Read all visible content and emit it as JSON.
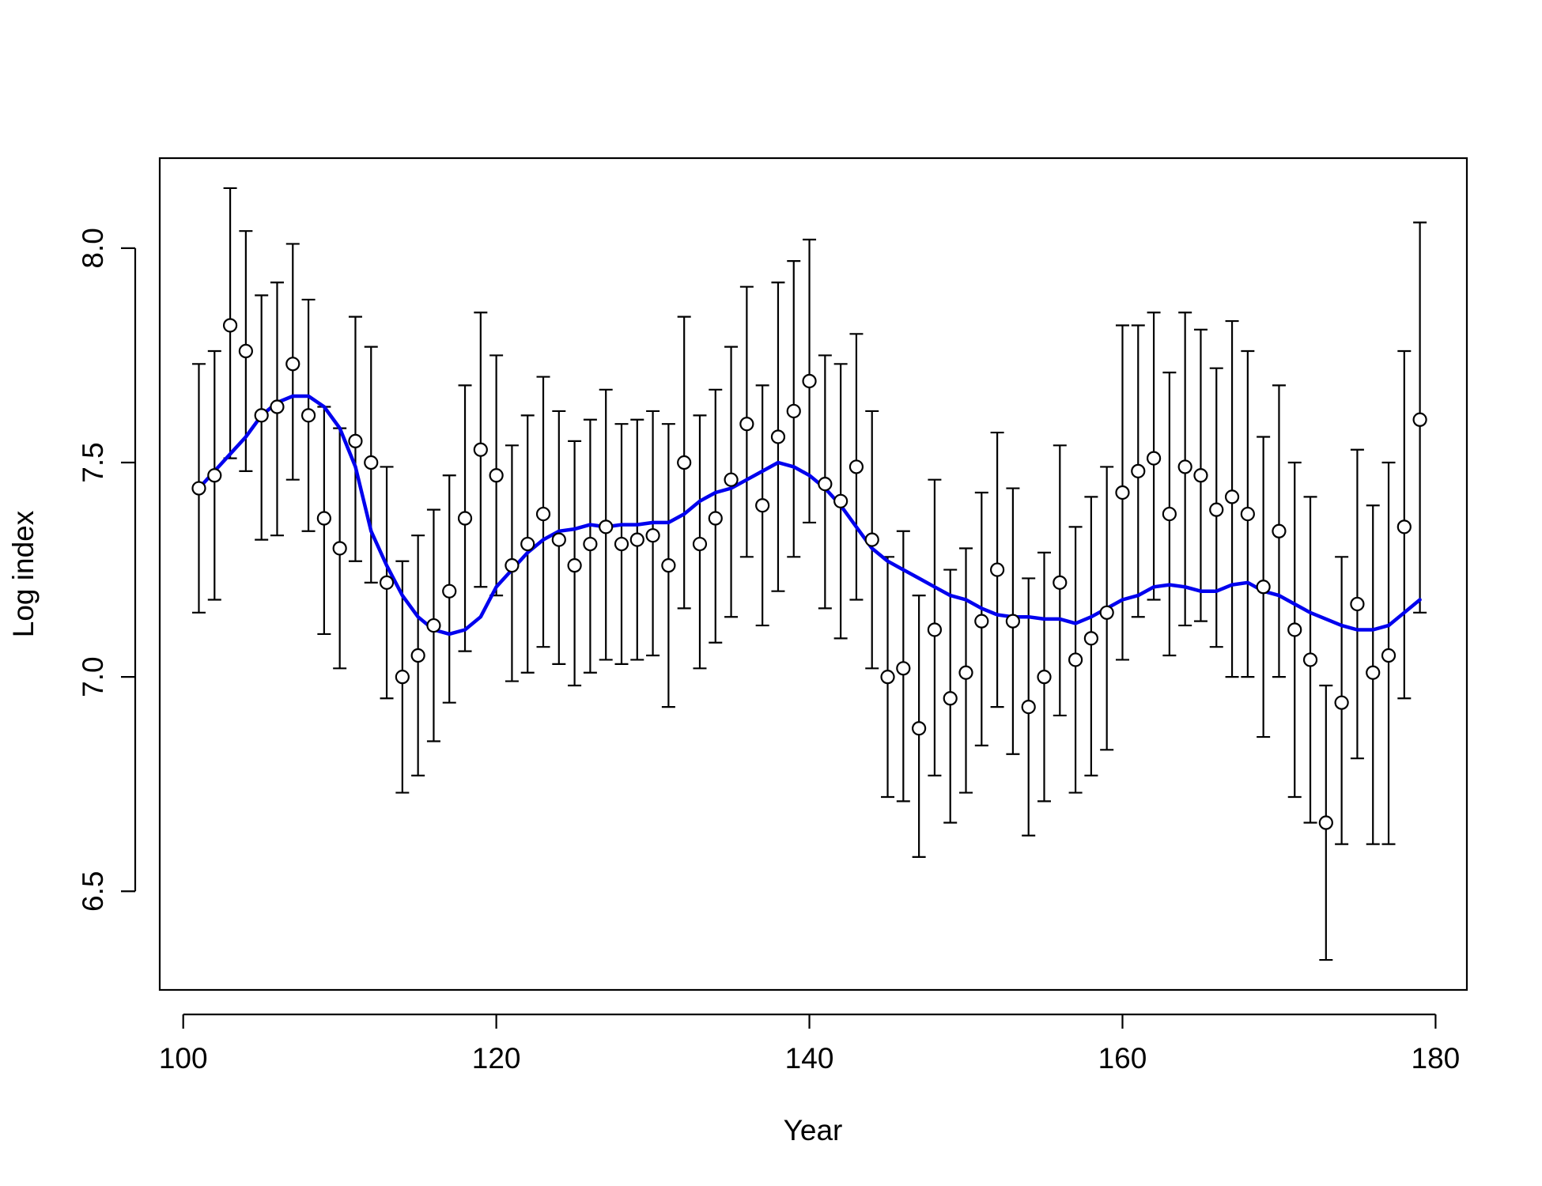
{
  "chart_data": {
    "type": "scatter",
    "title": "",
    "xlabel": "Year",
    "ylabel": "Log index",
    "xlim": [
      98.5,
      182
    ],
    "ylim": [
      6.27,
      8.21
    ],
    "x_ticks": [
      100,
      120,
      140,
      160,
      180
    ],
    "x_tick_labels": [
      "100",
      "120",
      "140",
      "160",
      "180"
    ],
    "y_ticks": [
      6.5,
      7.0,
      7.5,
      8.0
    ],
    "y_tick_labels": [
      "6.5",
      "7.0",
      "7.5",
      "8.0"
    ],
    "grid": false,
    "legend": "none",
    "colors": {
      "points": "#000000",
      "error_bars": "#000000",
      "trend": "#0000ee"
    },
    "series": [
      {
        "kind": "points_with_error_bars",
        "x": [
          101,
          102,
          103,
          104,
          105,
          106,
          107,
          108,
          109,
          110,
          111,
          112,
          113,
          114,
          115,
          116,
          117,
          118,
          119,
          120,
          121,
          122,
          123,
          124,
          125,
          126,
          127,
          128,
          129,
          130,
          131,
          132,
          133,
          134,
          135,
          136,
          137,
          138,
          139,
          140,
          141,
          142,
          143,
          144,
          145,
          146,
          147,
          148,
          149,
          150,
          151,
          152,
          153,
          154,
          155,
          156,
          157,
          158,
          159,
          160,
          161,
          162,
          163,
          164,
          165,
          166,
          167,
          168,
          169,
          170,
          171,
          172,
          173,
          174,
          175,
          176,
          177,
          178,
          179
        ],
        "y": [
          7.44,
          7.47,
          7.82,
          7.76,
          7.61,
          7.63,
          7.73,
          7.61,
          7.37,
          7.3,
          7.55,
          7.5,
          7.22,
          7.0,
          7.05,
          7.12,
          7.2,
          7.37,
          7.53,
          7.47,
          7.26,
          7.31,
          7.38,
          7.32,
          7.26,
          7.31,
          7.35,
          7.31,
          7.32,
          7.33,
          7.26,
          7.5,
          7.31,
          7.37,
          7.46,
          7.59,
          7.4,
          7.56,
          7.62,
          7.69,
          7.45,
          7.41,
          7.49,
          7.32,
          7.0,
          7.02,
          6.88,
          7.11,
          6.95,
          7.01,
          7.13,
          7.25,
          7.13,
          6.93,
          7.0,
          7.22,
          7.04,
          7.09,
          7.15,
          7.43,
          7.48,
          7.51,
          7.38,
          7.49,
          7.47,
          7.39,
          7.42,
          7.38,
          7.21,
          7.34,
          7.11,
          7.04,
          6.66,
          6.94,
          7.17,
          7.01,
          7.05,
          7.35,
          7.6
        ],
        "lower": [
          7.15,
          7.18,
          7.51,
          7.48,
          7.32,
          7.33,
          7.46,
          7.34,
          7.1,
          7.02,
          7.27,
          7.22,
          6.95,
          6.73,
          6.77,
          6.85,
          6.94,
          7.06,
          7.21,
          7.19,
          6.99,
          7.01,
          7.07,
          7.03,
          6.98,
          7.01,
          7.04,
          7.03,
          7.04,
          7.05,
          6.93,
          7.16,
          7.02,
          7.08,
          7.14,
          7.28,
          7.12,
          7.2,
          7.28,
          7.36,
          7.16,
          7.09,
          7.18,
          7.02,
          6.72,
          6.71,
          6.58,
          6.77,
          6.66,
          6.73,
          6.84,
          6.93,
          6.82,
          6.63,
          6.71,
          6.91,
          6.73,
          6.77,
          6.83,
          7.04,
          7.14,
          7.18,
          7.05,
          7.12,
          7.13,
          7.07,
          7.0,
          7.0,
          6.86,
          7.0,
          6.72,
          6.66,
          6.34,
          6.61,
          6.81,
          6.61,
          6.61,
          6.95,
          7.15
        ],
        "upper": [
          7.73,
          7.76,
          8.14,
          8.04,
          7.89,
          7.92,
          8.01,
          7.88,
          7.63,
          7.58,
          7.84,
          7.77,
          7.49,
          7.27,
          7.33,
          7.39,
          7.47,
          7.68,
          7.85,
          7.75,
          7.54,
          7.61,
          7.7,
          7.62,
          7.55,
          7.6,
          7.67,
          7.59,
          7.6,
          7.62,
          7.59,
          7.84,
          7.61,
          7.67,
          7.77,
          7.91,
          7.68,
          7.92,
          7.97,
          8.02,
          7.75,
          7.73,
          7.8,
          7.62,
          7.28,
          7.34,
          7.19,
          7.46,
          7.25,
          7.3,
          7.43,
          7.57,
          7.44,
          7.23,
          7.29,
          7.54,
          7.35,
          7.42,
          7.49,
          7.82,
          7.82,
          7.85,
          7.71,
          7.85,
          7.81,
          7.72,
          7.83,
          7.76,
          7.56,
          7.68,
          7.5,
          7.42,
          6.98,
          7.28,
          7.53,
          7.4,
          7.5,
          7.76,
          8.06
        ]
      },
      {
        "kind": "trend_line",
        "x": [
          101,
          102,
          103,
          104,
          105,
          106,
          107,
          108,
          109,
          110,
          111,
          112,
          113,
          114,
          115,
          116,
          117,
          118,
          119,
          120,
          121,
          122,
          123,
          124,
          125,
          126,
          127,
          128,
          129,
          130,
          131,
          132,
          133,
          134,
          135,
          136,
          137,
          138,
          139,
          140,
          141,
          142,
          143,
          144,
          145,
          146,
          147,
          148,
          149,
          150,
          151,
          152,
          153,
          154,
          155,
          156,
          157,
          158,
          159,
          160,
          161,
          162,
          163,
          164,
          165,
          166,
          167,
          168,
          169,
          170,
          171,
          172,
          173,
          174,
          175,
          176,
          177,
          178,
          179
        ],
        "y": [
          7.44,
          7.48,
          7.52,
          7.56,
          7.61,
          7.64,
          7.655,
          7.655,
          7.63,
          7.58,
          7.49,
          7.34,
          7.26,
          7.19,
          7.14,
          7.11,
          7.1,
          7.11,
          7.14,
          7.21,
          7.25,
          7.29,
          7.32,
          7.34,
          7.345,
          7.355,
          7.35,
          7.355,
          7.355,
          7.36,
          7.36,
          7.38,
          7.41,
          7.43,
          7.44,
          7.46,
          7.48,
          7.5,
          7.49,
          7.47,
          7.44,
          7.4,
          7.35,
          7.3,
          7.27,
          7.25,
          7.23,
          7.21,
          7.19,
          7.18,
          7.16,
          7.145,
          7.14,
          7.14,
          7.135,
          7.135,
          7.125,
          7.14,
          7.16,
          7.18,
          7.19,
          7.21,
          7.215,
          7.21,
          7.2,
          7.2,
          7.215,
          7.22,
          7.2,
          7.19,
          7.17,
          7.15,
          7.135,
          7.12,
          7.11,
          7.11,
          7.12,
          7.15,
          7.18
        ]
      }
    ]
  }
}
